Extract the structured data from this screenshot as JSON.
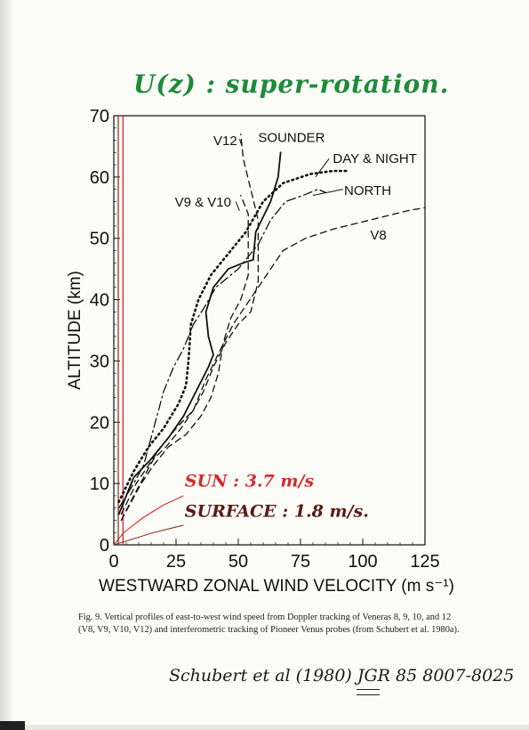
{
  "handwritten": {
    "title": "U(z) : super-rotation.",
    "reference": "Schubert et al (1980) JGR 85 8007-8025"
  },
  "caption": "Fig. 9. Vertical profiles of east-to-west wind speed from Doppler tracking of Veneras 8, 9, 10, and 12 (V8, V9, V10, V12) and interferometric tracking of Pioneer Venus probes (from Schubert et al. 1980a).",
  "chart_data": {
    "type": "line",
    "xlabel": "WESTWARD ZONAL WIND VELOCITY (m s⁻¹)",
    "ylabel": "ALTITUDE (km)",
    "xlim": [
      0,
      125
    ],
    "ylim": [
      0,
      70
    ],
    "xticks": [
      "0",
      "25",
      "50",
      "75",
      "100",
      "125"
    ],
    "yticks": [
      "0",
      "10",
      "20",
      "30",
      "40",
      "50",
      "60",
      "70"
    ],
    "grid": false,
    "series": [
      {
        "name": "SOUNDER",
        "style": "solid",
        "points": [
          [
            2,
            5
          ],
          [
            8,
            11
          ],
          [
            15,
            14
          ],
          [
            22,
            17.5
          ],
          [
            28,
            21
          ],
          [
            33,
            25
          ],
          [
            38,
            29
          ],
          [
            40,
            31
          ],
          [
            38,
            34
          ],
          [
            37,
            38
          ],
          [
            40,
            42
          ],
          [
            46,
            45
          ],
          [
            52,
            46
          ],
          [
            56,
            46.5
          ],
          [
            57,
            51
          ],
          [
            63,
            56
          ],
          [
            66,
            60
          ],
          [
            67,
            64
          ]
        ]
      },
      {
        "name": "DAY & NIGHT",
        "style": "dotted",
        "points": [
          [
            2,
            7
          ],
          [
            8,
            12
          ],
          [
            14,
            16
          ],
          [
            20,
            19
          ],
          [
            26,
            23
          ],
          [
            29,
            26
          ],
          [
            30,
            30
          ],
          [
            31,
            36
          ],
          [
            34,
            40
          ],
          [
            39,
            44
          ],
          [
            45,
            47
          ],
          [
            53,
            51
          ],
          [
            60,
            56
          ],
          [
            68,
            59
          ],
          [
            79,
            60.5
          ],
          [
            88,
            61
          ],
          [
            94,
            61
          ]
        ]
      },
      {
        "name": "NORTH",
        "style": "dashdot",
        "points": [
          [
            2,
            6
          ],
          [
            8,
            10
          ],
          [
            12,
            13
          ],
          [
            16,
            19
          ],
          [
            20,
            25
          ],
          [
            24,
            29
          ],
          [
            28,
            32
          ],
          [
            32,
            36
          ],
          [
            36,
            38.5
          ],
          [
            41,
            42
          ],
          [
            50,
            45
          ],
          [
            58,
            49
          ],
          [
            63,
            53
          ],
          [
            69,
            56
          ],
          [
            76,
            57
          ],
          [
            82,
            58
          ],
          [
            85,
            57.5
          ]
        ]
      },
      {
        "name": "V8",
        "style": "dashed",
        "points": [
          [
            3,
            5
          ],
          [
            9,
            10
          ],
          [
            14,
            13
          ],
          [
            19,
            16
          ],
          [
            25,
            19
          ],
          [
            32,
            22
          ],
          [
            37,
            27
          ],
          [
            43,
            32
          ],
          [
            48,
            36
          ],
          [
            53,
            39
          ],
          [
            58,
            42
          ],
          [
            63,
            45
          ],
          [
            68,
            48
          ],
          [
            77,
            50
          ],
          [
            88,
            51.5
          ],
          [
            103,
            53
          ],
          [
            118,
            54.5
          ],
          [
            125,
            55
          ]
        ]
      },
      {
        "name": "V12",
        "style": "dashed",
        "points": [
          [
            3,
            4
          ],
          [
            8,
            8
          ],
          [
            12,
            11
          ],
          [
            16,
            14
          ],
          [
            21,
            16
          ],
          [
            27,
            19
          ],
          [
            32,
            22
          ],
          [
            36,
            25
          ],
          [
            40,
            29
          ],
          [
            45,
            33
          ],
          [
            50,
            36
          ],
          [
            55,
            38
          ],
          [
            58,
            43
          ],
          [
            58,
            48
          ],
          [
            58,
            53
          ],
          [
            55,
            58
          ],
          [
            52,
            63
          ],
          [
            51,
            67
          ]
        ]
      },
      {
        "name": "V9 & V10",
        "style": "dashed",
        "points": [
          [
            3,
            4
          ],
          [
            7,
            7
          ],
          [
            11,
            10
          ],
          [
            16,
            13
          ],
          [
            22,
            16
          ],
          [
            29,
            18
          ],
          [
            35,
            21
          ],
          [
            39,
            24
          ],
          [
            42,
            28
          ],
          [
            44,
            33
          ],
          [
            47,
            37
          ],
          [
            51,
            40
          ],
          [
            54,
            44
          ],
          [
            54,
            48
          ],
          [
            54,
            51
          ],
          [
            54,
            54
          ],
          [
            51,
            57
          ]
        ]
      }
    ],
    "reference_lines": [
      {
        "label": "SUN : 3.7 m/s",
        "x": 3.7,
        "color": "#d42b2b",
        "profile": [
          [
            0,
            0
          ],
          [
            4,
            2
          ],
          [
            12,
            4.5
          ],
          [
            20,
            6.5
          ],
          [
            28,
            8
          ]
        ]
      },
      {
        "label": "SURFACE : 1.8 m/s.",
        "x": 1.8,
        "color": "#8b3a1e",
        "profile": [
          [
            0,
            0
          ],
          [
            8,
            1
          ],
          [
            16,
            2
          ],
          [
            24,
            2.8
          ],
          [
            28,
            3.2
          ]
        ]
      }
    ],
    "annotations": [
      "V12",
      "SOUNDER",
      "DAY & NIGHT",
      "V9 & V10",
      "NORTH",
      "V8"
    ]
  }
}
